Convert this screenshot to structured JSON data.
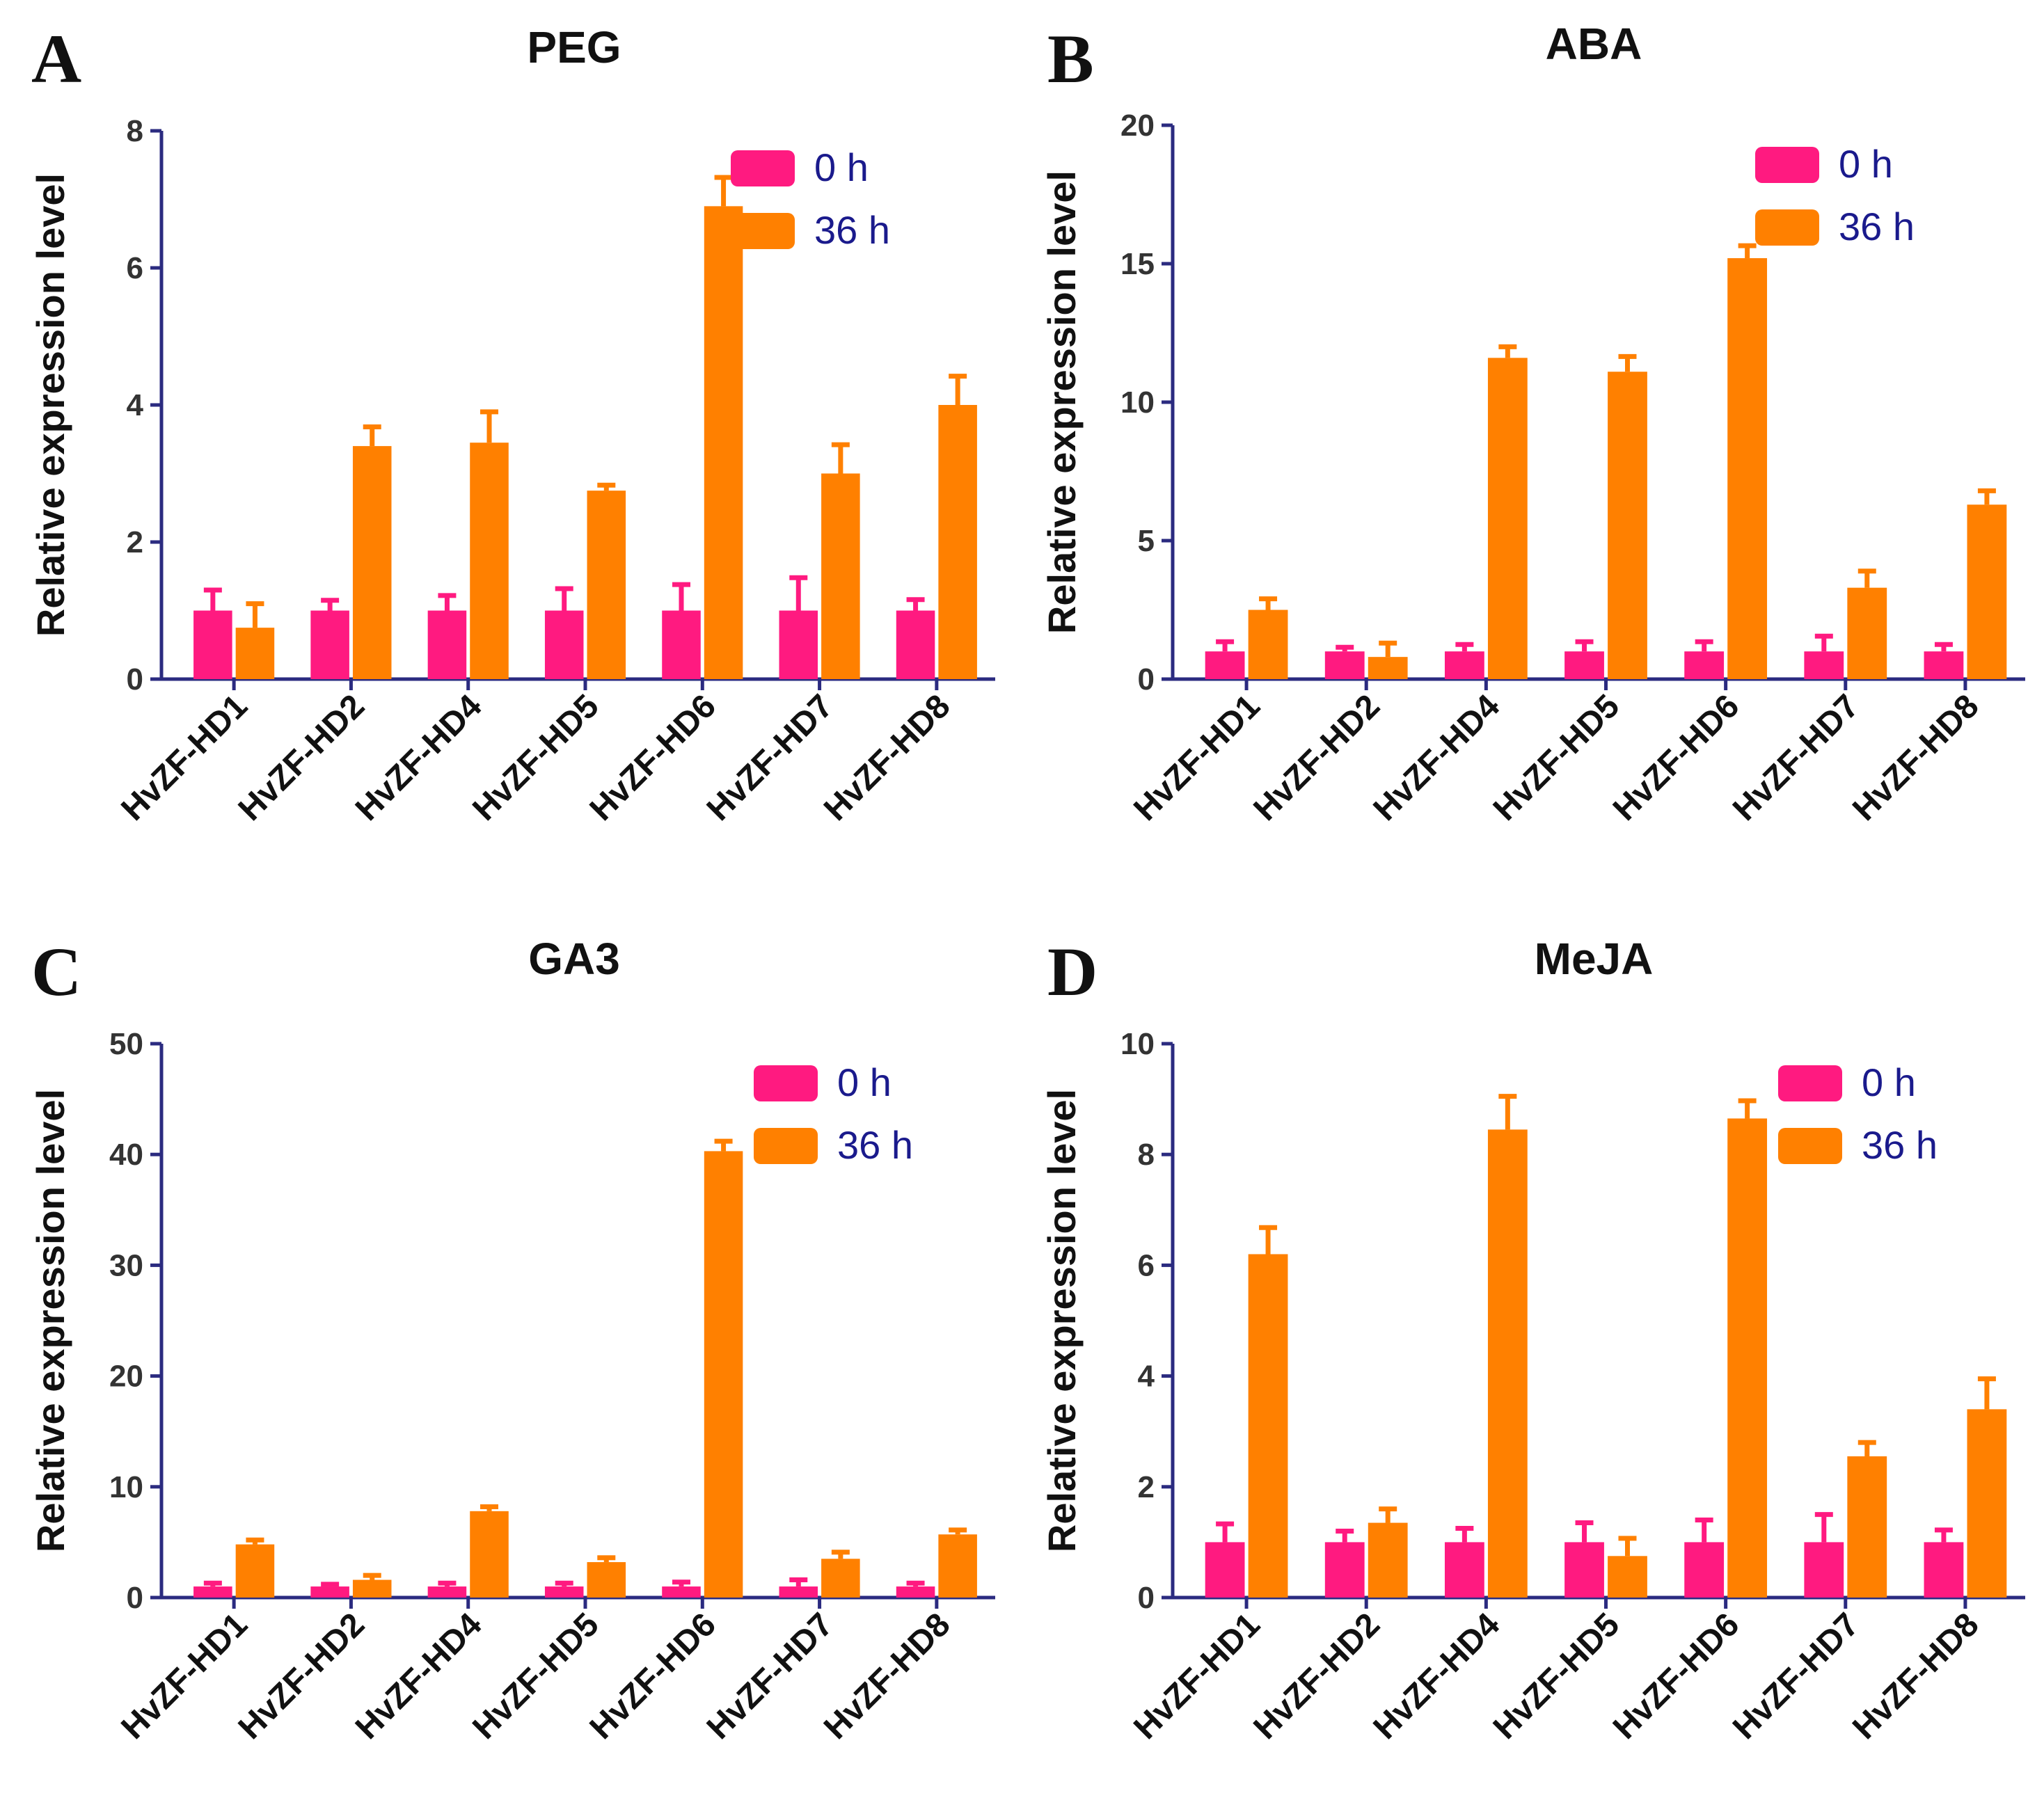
{
  "colors": {
    "series_0h": "#ff1a80",
    "series_36h": "#ff8000",
    "axis": "#2b2b80",
    "legend_text": "#1a1a8c"
  },
  "legend": [
    "0 h",
    "36 h"
  ],
  "chart_data": [
    {
      "panel": "A",
      "type": "bar",
      "title": "PEG",
      "ylabel": "Relative expression level",
      "xlabel": "",
      "ylim": [
        0,
        8
      ],
      "yticks": [
        0,
        2,
        4,
        6,
        8
      ],
      "categories": [
        "HvZF-HD1",
        "HvZF-HD2",
        "HvZF-HD4",
        "HvZF-HD5",
        "HvZF-HD6",
        "HvZF-HD7",
        "HvZF-HD8"
      ],
      "series": [
        {
          "name": "0 h",
          "values": [
            1.0,
            1.0,
            1.0,
            1.0,
            1.0,
            1.0,
            1.0
          ],
          "errors": [
            0.3,
            0.15,
            0.22,
            0.32,
            0.38,
            0.48,
            0.16
          ]
        },
        {
          "name": "36 h",
          "values": [
            0.75,
            3.4,
            3.45,
            2.75,
            6.9,
            3.0,
            4.0
          ],
          "errors": [
            0.35,
            0.28,
            0.45,
            0.08,
            0.42,
            0.42,
            0.42
          ]
        }
      ]
    },
    {
      "panel": "B",
      "type": "bar",
      "title": "ABA",
      "ylabel": "Relative expression level",
      "xlabel": "",
      "ylim": [
        0,
        20
      ],
      "yticks": [
        0,
        5,
        10,
        15,
        20
      ],
      "categories": [
        "HvZF-HD1",
        "HvZF-HD2",
        "HvZF-HD4",
        "HvZF-HD5",
        "HvZF-HD6",
        "HvZF-HD7",
        "HvZF-HD8"
      ],
      "series": [
        {
          "name": "0 h",
          "values": [
            1.0,
            1.0,
            1.0,
            1.0,
            1.0,
            1.0,
            1.0
          ],
          "errors": [
            0.35,
            0.15,
            0.25,
            0.35,
            0.35,
            0.55,
            0.25
          ]
        },
        {
          "name": "36 h",
          "values": [
            2.5,
            0.8,
            11.6,
            11.1,
            15.2,
            3.3,
            6.3
          ],
          "errors": [
            0.4,
            0.5,
            0.4,
            0.55,
            0.45,
            0.6,
            0.5
          ]
        }
      ]
    },
    {
      "panel": "C",
      "type": "bar",
      "title": "GA3",
      "ylabel": "Relative expression level",
      "xlabel": "",
      "ylim": [
        0,
        50
      ],
      "yticks": [
        0,
        10,
        20,
        30,
        40,
        50
      ],
      "categories": [
        "HvZF-HD1",
        "HvZF-HD2",
        "HvZF-HD4",
        "HvZF-HD5",
        "HvZF-HD6",
        "HvZF-HD7",
        "HvZF-HD8"
      ],
      "series": [
        {
          "name": "0 h",
          "values": [
            1.0,
            1.0,
            1.0,
            1.0,
            1.0,
            1.0,
            1.0
          ],
          "errors": [
            0.3,
            0.2,
            0.3,
            0.3,
            0.4,
            0.6,
            0.3
          ]
        },
        {
          "name": "36 h",
          "values": [
            4.8,
            1.6,
            7.8,
            3.2,
            40.3,
            3.5,
            5.7
          ],
          "errors": [
            0.4,
            0.4,
            0.4,
            0.4,
            0.9,
            0.6,
            0.4
          ]
        }
      ]
    },
    {
      "panel": "D",
      "type": "bar",
      "title": "MeJA",
      "ylabel": "Relative expression level",
      "xlabel": "",
      "ylim": [
        0,
        10
      ],
      "yticks": [
        0,
        2,
        4,
        6,
        8,
        10
      ],
      "categories": [
        "HvZF-HD1",
        "HvZF-HD2",
        "HvZF-HD4",
        "HvZF-HD5",
        "HvZF-HD6",
        "HvZF-HD7",
        "HvZF-HD8"
      ],
      "series": [
        {
          "name": "0 h",
          "values": [
            1.0,
            1.0,
            1.0,
            1.0,
            1.0,
            1.0,
            1.0
          ],
          "errors": [
            0.33,
            0.2,
            0.25,
            0.35,
            0.4,
            0.5,
            0.22
          ]
        },
        {
          "name": "36 h",
          "values": [
            6.2,
            1.35,
            8.45,
            0.75,
            8.65,
            2.55,
            3.4
          ],
          "errors": [
            0.48,
            0.25,
            0.6,
            0.32,
            0.32,
            0.25,
            0.55
          ]
        }
      ]
    }
  ]
}
